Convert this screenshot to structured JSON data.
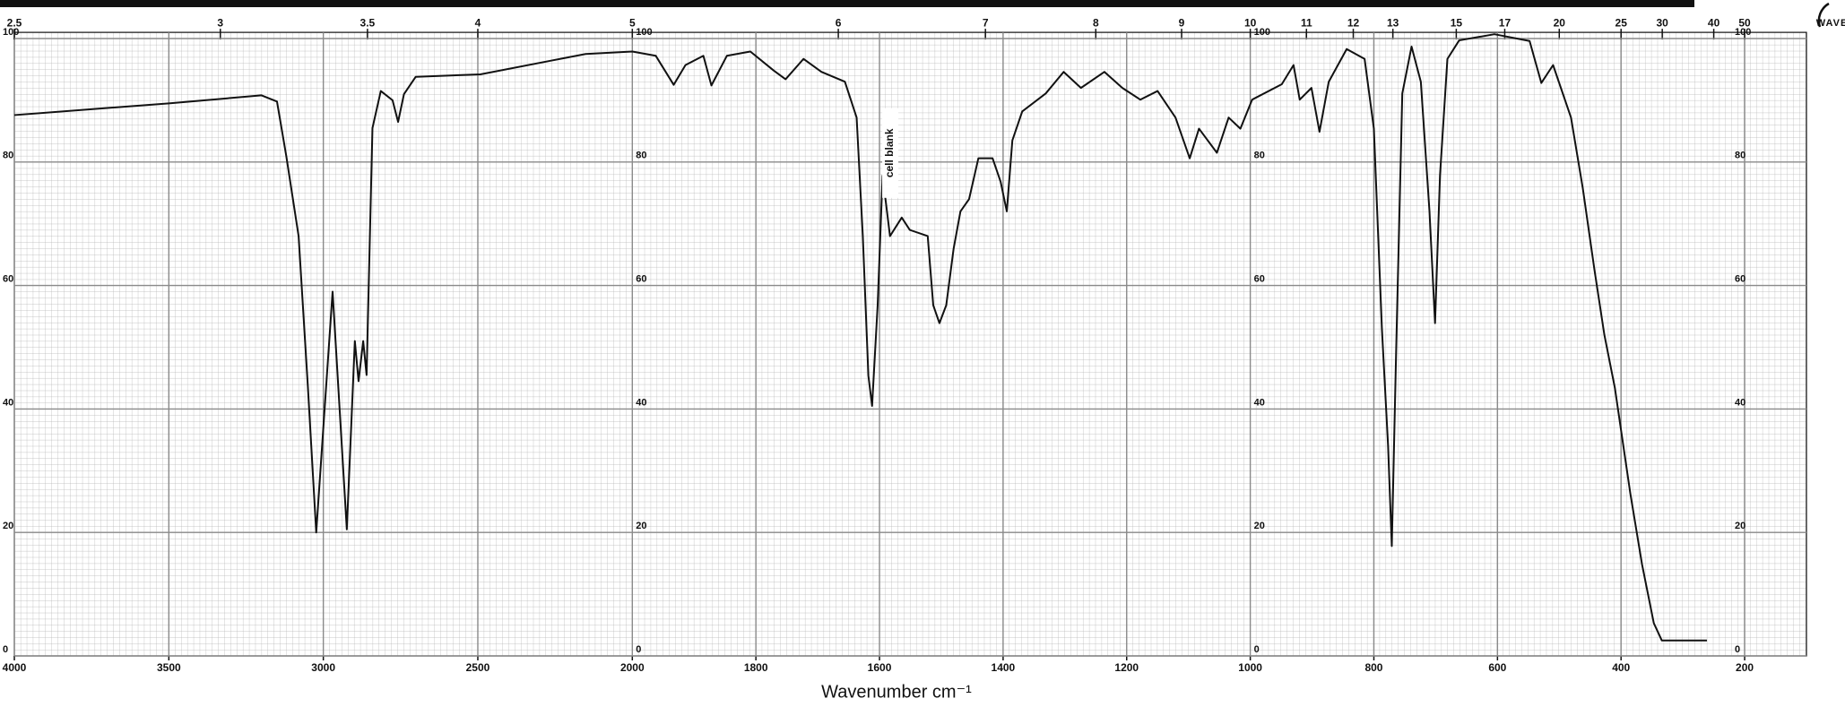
{
  "chart_data": {
    "type": "line",
    "x_label": "Wavenumber  cm⁻¹",
    "top_axis_label": "WAVELENGTH  μM",
    "annotation": "cell blank",
    "xlim": [
      4000,
      100
    ],
    "x_scale_break": 2000,
    "xticks": [
      4000,
      3500,
      3000,
      2500,
      2000,
      1800,
      1600,
      1400,
      1200,
      1000,
      800,
      600,
      400,
      200
    ],
    "top_xticks": [
      2.5,
      3,
      3.5,
      4,
      5,
      6,
      7,
      8,
      9,
      10,
      11,
      12,
      13,
      15,
      17,
      20,
      25,
      30,
      40,
      50
    ],
    "ylim": [
      0,
      101
    ],
    "yticks": [
      0,
      20,
      40,
      60,
      80,
      100
    ],
    "grid": true,
    "color": "#111111",
    "grid_color": "#8a8a8a",
    "x": [
      4000,
      3500,
      3200,
      3150,
      3120,
      3080,
      3050,
      3023,
      2970,
      2924,
      2898,
      2886,
      2871,
      2860,
      2841,
      2814,
      2776,
      2758,
      2739,
      2701,
      2492,
      2265,
      2151,
      2000,
      1962,
      1933,
      1914,
      1885,
      1872,
      1847,
      1809,
      1771,
      1752,
      1723,
      1694,
      1656,
      1637,
      1627,
      1618,
      1612,
      1603,
      1595,
      1583,
      1564,
      1551,
      1522,
      1513,
      1503,
      1492,
      1480,
      1469,
      1455,
      1440,
      1417,
      1404,
      1394,
      1385,
      1369,
      1331,
      1302,
      1274,
      1236,
      1207,
      1178,
      1150,
      1121,
      1098,
      1083,
      1054,
      1035,
      1016,
      997,
      949,
      930,
      920,
      901,
      888,
      873,
      844,
      815,
      800,
      787,
      777,
      771,
      764,
      754,
      739,
      724,
      710,
      701,
      693,
      681,
      662,
      605,
      548,
      529,
      510,
      481,
      462,
      443,
      427,
      410,
      385,
      366,
      347,
      334,
      318,
      261
    ],
    "values": [
      87.6,
      89.5,
      90.8,
      89.8,
      81,
      68,
      43.6,
      20,
      59,
      20.5,
      51,
      44.5,
      51,
      45.5,
      85.5,
      91.5,
      90,
      86.5,
      91,
      93.8,
      94.2,
      96.4,
      97.5,
      97.9,
      97.2,
      92.5,
      95.7,
      97.2,
      92.4,
      97.2,
      97.9,
      94.8,
      93.4,
      96.7,
      94.6,
      93,
      87.2,
      68,
      45.4,
      40.5,
      56.8,
      77.8,
      68,
      71,
      69,
      68,
      56.8,
      53.9,
      56.8,
      66,
      72,
      74,
      80.6,
      80.6,
      76.8,
      72,
      83.5,
      88.2,
      91.1,
      94.6,
      92,
      94.6,
      92,
      90.1,
      91.5,
      87.2,
      80.6,
      85.4,
      81.5,
      87.2,
      85.4,
      90.1,
      92.6,
      95.7,
      90.1,
      92,
      84.9,
      93,
      98.3,
      96.7,
      85.4,
      53,
      34,
      17.8,
      49.2,
      91.1,
      98.7,
      93,
      72,
      53.9,
      77.8,
      96.7,
      99.7,
      100.7,
      99.6,
      92.8,
      95.7,
      87.2,
      75.8,
      62.5,
      52,
      43.4,
      26.3,
      14.8,
      5.3,
      2.5,
      2.5,
      2.5
    ]
  }
}
